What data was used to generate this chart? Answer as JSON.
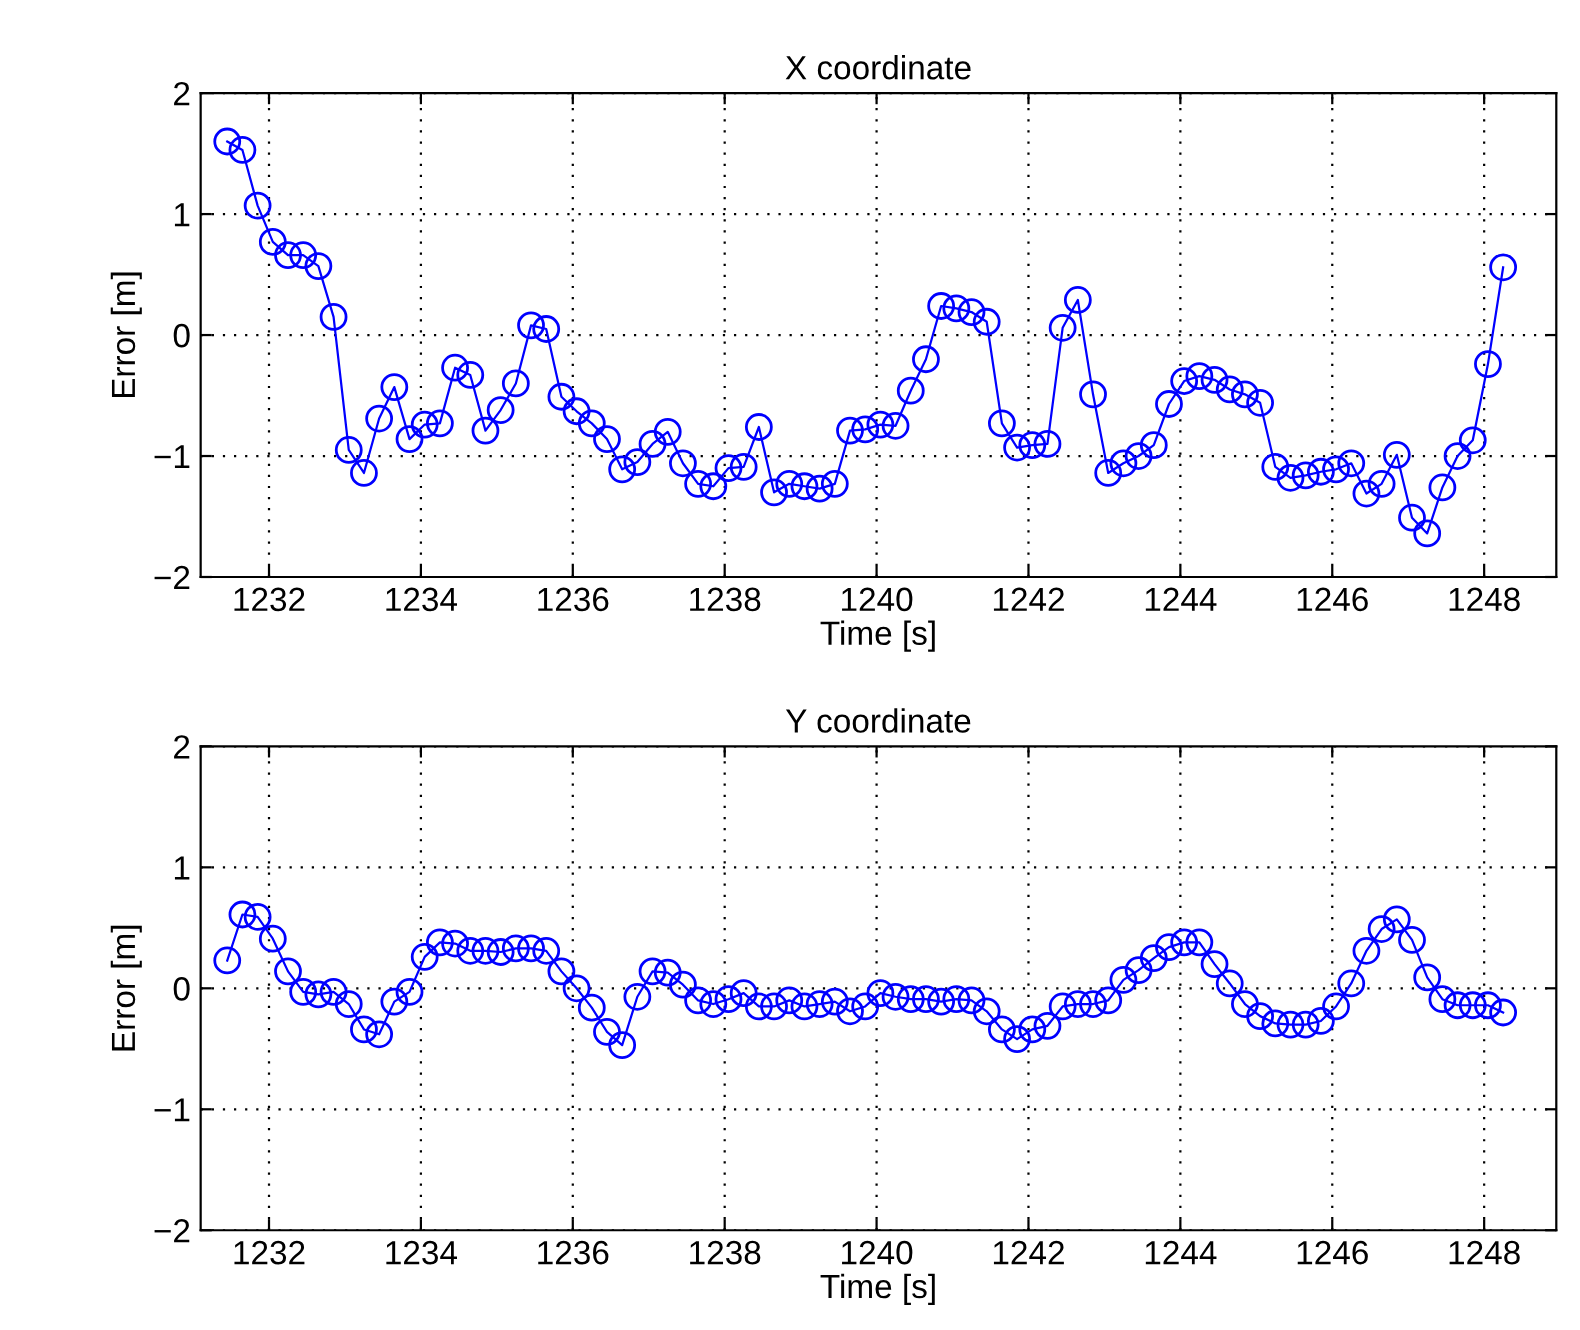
{
  "chart_data": [
    {
      "type": "line",
      "title": "X coordinate",
      "xlabel": "Time [s]",
      "ylabel": "Error [m]",
      "xlim": [
        1231.1,
        1248.95
      ],
      "ylim": [
        -2,
        2
      ],
      "xticks": [
        1232,
        1234,
        1236,
        1238,
        1240,
        1242,
        1244,
        1246,
        1248
      ],
      "yticks": [
        -2,
        -1,
        0,
        1,
        2
      ],
      "grid": true,
      "marker": "circle",
      "line_style": "solid",
      "x": [
        1231.45,
        1231.65,
        1231.85,
        1232.05,
        1232.25,
        1232.45,
        1232.65,
        1232.85,
        1233.05,
        1233.25,
        1233.45,
        1233.65,
        1233.85,
        1234.05,
        1234.25,
        1234.45,
        1234.65,
        1234.85,
        1235.05,
        1235.25,
        1235.45,
        1235.65,
        1235.85,
        1236.05,
        1236.25,
        1236.45,
        1236.65,
        1236.85,
        1237.05,
        1237.25,
        1237.45,
        1237.65,
        1237.85,
        1238.05,
        1238.25,
        1238.45,
        1238.65,
        1238.85,
        1239.05,
        1239.25,
        1239.45,
        1239.65,
        1239.85,
        1240.05,
        1240.25,
        1240.45,
        1240.65,
        1240.85,
        1241.05,
        1241.25,
        1241.45,
        1241.65,
        1241.85,
        1242.05,
        1242.25,
        1242.45,
        1242.65,
        1242.85,
        1243.05,
        1243.25,
        1243.45,
        1243.65,
        1243.85,
        1244.05,
        1244.25,
        1244.45,
        1244.65,
        1244.85,
        1245.05,
        1245.25,
        1245.45,
        1245.65,
        1245.85,
        1246.05,
        1246.25,
        1246.45,
        1246.65,
        1246.85,
        1247.05,
        1247.25,
        1247.45,
        1247.65,
        1247.85,
        1248.05,
        1248.25
      ],
      "series": [
        {
          "color": "#0000ff",
          "values": [
            1.6,
            1.53,
            1.07,
            0.77,
            0.66,
            0.66,
            0.57,
            0.15,
            -0.95,
            -1.14,
            -0.69,
            -0.43,
            -0.86,
            -0.74,
            -0.73,
            -0.27,
            -0.33,
            -0.79,
            -0.62,
            -0.4,
            0.08,
            0.05,
            -0.51,
            -0.63,
            -0.73,
            -0.86,
            -1.11,
            -1.05,
            -0.9,
            -0.8,
            -1.06,
            -1.23,
            -1.25,
            -1.1,
            -1.09,
            -0.76,
            -1.3,
            -1.23,
            -1.25,
            -1.27,
            -1.23,
            -0.79,
            -0.78,
            -0.74,
            -0.75,
            -0.46,
            -0.2,
            0.24,
            0.22,
            0.19,
            0.11,
            -0.73,
            -0.93,
            -0.91,
            -0.9,
            0.06,
            0.29,
            -0.49,
            -1.14,
            -1.06,
            -1.0,
            -0.91,
            -0.57,
            -0.38,
            -0.34,
            -0.37,
            -0.45,
            -0.49,
            -0.56,
            -1.09,
            -1.18,
            -1.16,
            -1.13,
            -1.11,
            -1.06,
            -1.31,
            -1.23,
            -0.99,
            -1.51,
            -1.64,
            -1.26,
            -1.0,
            -0.87,
            -0.24,
            0.56
          ]
        }
      ]
    },
    {
      "type": "line",
      "title": "Y coordinate",
      "xlabel": "Time [s]",
      "ylabel": "Error [m]",
      "xlim": [
        1231.1,
        1248.95
      ],
      "ylim": [
        -2,
        2
      ],
      "xticks": [
        1232,
        1234,
        1236,
        1238,
        1240,
        1242,
        1244,
        1246,
        1248
      ],
      "yticks": [
        -2,
        -1,
        0,
        1,
        2
      ],
      "grid": true,
      "marker": "circle",
      "line_style": "solid",
      "x": [
        1231.45,
        1231.65,
        1231.85,
        1232.05,
        1232.25,
        1232.45,
        1232.65,
        1232.85,
        1233.05,
        1233.25,
        1233.45,
        1233.65,
        1233.85,
        1234.05,
        1234.25,
        1234.45,
        1234.65,
        1234.85,
        1235.05,
        1235.25,
        1235.45,
        1235.65,
        1235.85,
        1236.05,
        1236.25,
        1236.45,
        1236.65,
        1236.85,
        1237.05,
        1237.25,
        1237.45,
        1237.65,
        1237.85,
        1238.05,
        1238.25,
        1238.45,
        1238.65,
        1238.85,
        1239.05,
        1239.25,
        1239.45,
        1239.65,
        1239.85,
        1240.05,
        1240.25,
        1240.45,
        1240.65,
        1240.85,
        1241.05,
        1241.25,
        1241.45,
        1241.65,
        1241.85,
        1242.05,
        1242.25,
        1242.45,
        1242.65,
        1242.85,
        1243.05,
        1243.25,
        1243.45,
        1243.65,
        1243.85,
        1244.05,
        1244.25,
        1244.45,
        1244.65,
        1244.85,
        1245.05,
        1245.25,
        1245.45,
        1245.65,
        1245.85,
        1246.05,
        1246.25,
        1246.45,
        1246.65,
        1246.85,
        1247.05,
        1247.25,
        1247.45,
        1247.65,
        1247.85,
        1248.05,
        1248.25
      ],
      "series": [
        {
          "color": "#0000ff",
          "values": [
            0.23,
            0.61,
            0.59,
            0.41,
            0.14,
            -0.03,
            -0.05,
            -0.03,
            -0.13,
            -0.34,
            -0.38,
            -0.11,
            -0.03,
            0.26,
            0.38,
            0.37,
            0.31,
            0.31,
            0.3,
            0.33,
            0.33,
            0.31,
            0.14,
            0.0,
            -0.16,
            -0.36,
            -0.47,
            -0.07,
            0.14,
            0.13,
            0.03,
            -0.1,
            -0.13,
            -0.09,
            -0.04,
            -0.15,
            -0.15,
            -0.1,
            -0.15,
            -0.13,
            -0.11,
            -0.19,
            -0.15,
            -0.04,
            -0.07,
            -0.09,
            -0.09,
            -0.11,
            -0.09,
            -0.1,
            -0.19,
            -0.34,
            -0.42,
            -0.34,
            -0.31,
            -0.15,
            -0.13,
            -0.13,
            -0.1,
            0.07,
            0.15,
            0.25,
            0.34,
            0.38,
            0.38,
            0.2,
            0.04,
            -0.13,
            -0.23,
            -0.29,
            -0.3,
            -0.3,
            -0.27,
            -0.15,
            0.04,
            0.31,
            0.49,
            0.57,
            0.4,
            0.09,
            -0.09,
            -0.14,
            -0.14,
            -0.14,
            -0.2
          ]
        }
      ]
    }
  ]
}
